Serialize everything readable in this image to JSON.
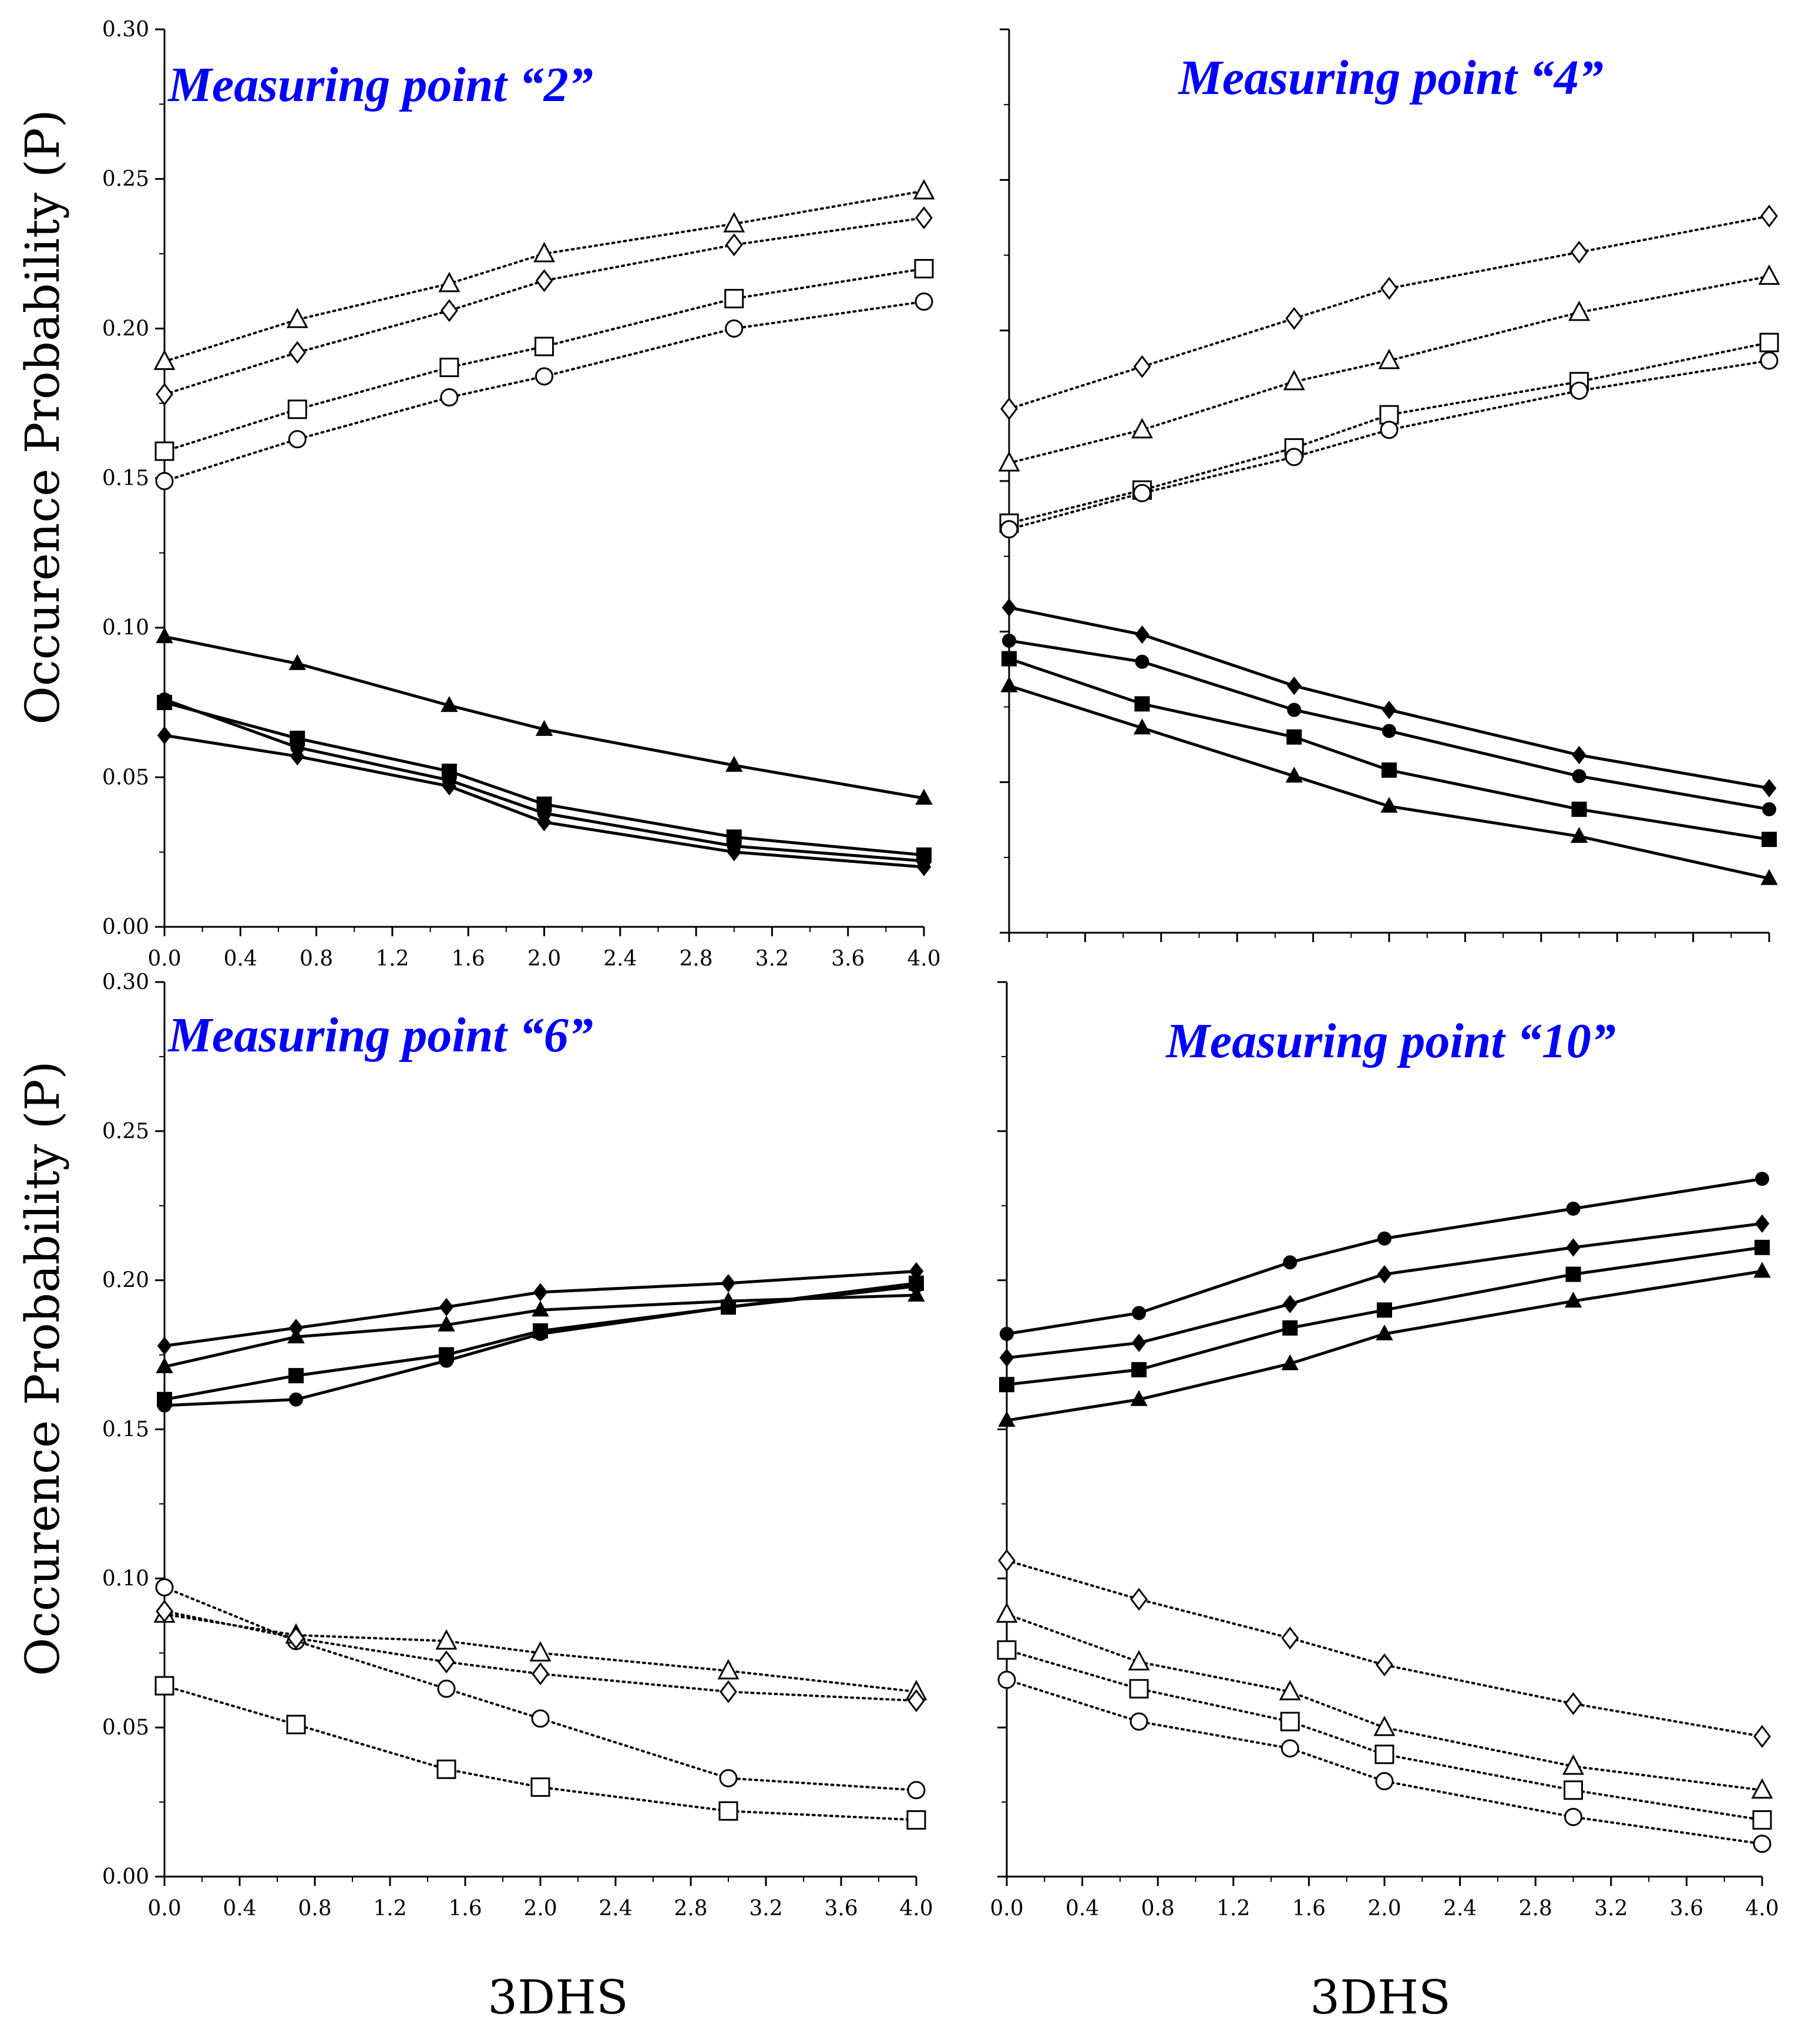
{
  "figure": {
    "y_axis_title": "Occurence Probability (P)",
    "x_axis_title": "3DHS"
  },
  "chart_data": [
    {
      "type": "line",
      "title": "Measuring point “2”",
      "xlabel": "3DHS",
      "ylabel": "Occurence Probability (P)",
      "xlim": [
        0,
        4.0
      ],
      "ylim": [
        0,
        0.3
      ],
      "x_ticks": [
        "0.0",
        "0.4",
        "0.8",
        "1.2",
        "1.6",
        "2.0",
        "2.4",
        "2.8",
        "3.2",
        "3.6",
        "4.0"
      ],
      "y_ticks": [
        "0.00",
        "0.05",
        "0.10",
        "0.15",
        "0.20",
        "0.25",
        "0.30"
      ],
      "x": [
        0,
        0.7,
        1.5,
        2.0,
        3.0,
        4.0
      ],
      "series": [
        {
          "name": "open-triangle",
          "marker": "triangle",
          "filled": false,
          "dashed": true,
          "values": [
            0.189,
            0.203,
            0.215,
            0.225,
            0.235,
            0.246
          ]
        },
        {
          "name": "open-diamond",
          "marker": "diamond",
          "filled": false,
          "dashed": true,
          "values": [
            0.178,
            0.192,
            0.206,
            0.216,
            0.228,
            0.237
          ]
        },
        {
          "name": "open-square",
          "marker": "square",
          "filled": false,
          "dashed": true,
          "values": [
            0.159,
            0.173,
            0.187,
            0.194,
            0.21,
            0.22
          ]
        },
        {
          "name": "open-circle",
          "marker": "circle",
          "filled": false,
          "dashed": true,
          "values": [
            0.149,
            0.163,
            0.177,
            0.184,
            0.2,
            0.209
          ]
        },
        {
          "name": "filled-triangle",
          "marker": "triangle",
          "filled": true,
          "dashed": false,
          "values": [
            0.097,
            0.088,
            0.074,
            0.066,
            0.054,
            0.043
          ]
        },
        {
          "name": "filled-square",
          "marker": "square",
          "filled": true,
          "dashed": false,
          "values": [
            0.075,
            0.063,
            0.052,
            0.041,
            0.03,
            0.024
          ]
        },
        {
          "name": "filled-circle",
          "marker": "circle",
          "filled": true,
          "dashed": false,
          "values": [
            0.076,
            0.06,
            0.049,
            0.038,
            0.027,
            0.022
          ]
        },
        {
          "name": "filled-diamond",
          "marker": "diamond",
          "filled": true,
          "dashed": false,
          "values": [
            0.064,
            0.057,
            0.047,
            0.035,
            0.025,
            0.02
          ]
        }
      ]
    },
    {
      "type": "line",
      "title": "Measuring point “4”",
      "xlabel": "3DHS",
      "ylabel": "",
      "xlim": [
        0,
        4.0
      ],
      "ylim": [
        0,
        0.3
      ],
      "x_ticks": [],
      "y_ticks": [],
      "x": [
        0,
        0.7,
        1.5,
        2.0,
        3.0,
        4.0
      ],
      "series": [
        {
          "name": "open-diamond",
          "marker": "diamond",
          "filled": false,
          "dashed": true,
          "values": [
            0.174,
            0.188,
            0.204,
            0.214,
            0.226,
            0.238
          ]
        },
        {
          "name": "open-triangle",
          "marker": "triangle",
          "filled": false,
          "dashed": true,
          "values": [
            0.156,
            0.167,
            0.183,
            0.19,
            0.206,
            0.218
          ]
        },
        {
          "name": "open-square",
          "marker": "square",
          "filled": false,
          "dashed": true,
          "values": [
            0.136,
            0.147,
            0.161,
            0.172,
            0.183,
            0.196
          ]
        },
        {
          "name": "open-circle",
          "marker": "circle",
          "filled": false,
          "dashed": true,
          "values": [
            0.134,
            0.146,
            0.158,
            0.167,
            0.18,
            0.19
          ]
        },
        {
          "name": "filled-diamond",
          "marker": "diamond",
          "filled": true,
          "dashed": false,
          "values": [
            0.108,
            0.099,
            0.082,
            0.074,
            0.059,
            0.048
          ]
        },
        {
          "name": "filled-circle",
          "marker": "circle",
          "filled": true,
          "dashed": false,
          "values": [
            0.097,
            0.09,
            0.074,
            0.067,
            0.052,
            0.041
          ]
        },
        {
          "name": "filled-square",
          "marker": "square",
          "filled": true,
          "dashed": false,
          "values": [
            0.091,
            0.076,
            0.065,
            0.054,
            0.041,
            0.031
          ]
        },
        {
          "name": "filled-triangle",
          "marker": "triangle",
          "filled": true,
          "dashed": false,
          "values": [
            0.082,
            0.068,
            0.052,
            0.042,
            0.032,
            0.018
          ]
        }
      ]
    },
    {
      "type": "line",
      "title": "Measuring point “6”",
      "xlabel": "3DHS",
      "ylabel": "Occurence Probability (P)",
      "xlim": [
        0,
        4.0
      ],
      "ylim": [
        0,
        0.3
      ],
      "x_ticks": [
        "0.0",
        "0.4",
        "0.8",
        "1.2",
        "1.6",
        "2.0",
        "2.4",
        "2.8",
        "3.2",
        "3.6",
        "4.0"
      ],
      "y_ticks": [
        "0.00",
        "0.05",
        "0.10",
        "0.15",
        "0.20",
        "0.25",
        "0.30"
      ],
      "x": [
        0,
        0.7,
        1.5,
        2.0,
        3.0,
        4.0
      ],
      "series": [
        {
          "name": "filled-diamond",
          "marker": "diamond",
          "filled": true,
          "dashed": false,
          "values": [
            0.178,
            0.184,
            0.191,
            0.196,
            0.199,
            0.203
          ]
        },
        {
          "name": "filled-triangle",
          "marker": "triangle",
          "filled": true,
          "dashed": false,
          "values": [
            0.171,
            0.181,
            0.185,
            0.19,
            0.193,
            0.195
          ]
        },
        {
          "name": "filled-square",
          "marker": "square",
          "filled": true,
          "dashed": false,
          "values": [
            0.16,
            0.168,
            0.175,
            0.183,
            0.191,
            0.199
          ]
        },
        {
          "name": "filled-circle",
          "marker": "circle",
          "filled": true,
          "dashed": false,
          "values": [
            0.158,
            0.16,
            0.173,
            0.182,
            0.191,
            0.198
          ]
        },
        {
          "name": "open-circle",
          "marker": "circle",
          "filled": false,
          "dashed": true,
          "values": [
            0.097,
            0.079,
            0.063,
            0.053,
            0.033,
            0.029
          ]
        },
        {
          "name": "open-triangle",
          "marker": "triangle",
          "filled": false,
          "dashed": true,
          "values": [
            0.088,
            0.081,
            0.079,
            0.075,
            0.069,
            0.062
          ]
        },
        {
          "name": "open-diamond",
          "marker": "diamond",
          "filled": false,
          "dashed": true,
          "values": [
            0.089,
            0.08,
            0.072,
            0.068,
            0.062,
            0.059
          ]
        },
        {
          "name": "open-square",
          "marker": "square",
          "filled": false,
          "dashed": true,
          "values": [
            0.064,
            0.051,
            0.036,
            0.03,
            0.022,
            0.019
          ]
        }
      ]
    },
    {
      "type": "line",
      "title": "Measuring point “10”",
      "xlabel": "3DHS",
      "ylabel": "",
      "xlim": [
        0,
        4.0
      ],
      "ylim": [
        0,
        0.3
      ],
      "x_ticks": [
        "0.0",
        "0.4",
        "0.8",
        "1.2",
        "1.6",
        "2.0",
        "2.4",
        "2.8",
        "3.2",
        "3.6",
        "4.0"
      ],
      "y_ticks": [],
      "x": [
        0,
        0.7,
        1.5,
        2.0,
        3.0,
        4.0
      ],
      "series": [
        {
          "name": "filled-circle",
          "marker": "circle",
          "filled": true,
          "dashed": false,
          "values": [
            0.182,
            0.189,
            0.206,
            0.214,
            0.224,
            0.234
          ]
        },
        {
          "name": "filled-diamond",
          "marker": "diamond",
          "filled": true,
          "dashed": false,
          "values": [
            0.174,
            0.179,
            0.192,
            0.202,
            0.211,
            0.219
          ]
        },
        {
          "name": "filled-square",
          "marker": "square",
          "filled": true,
          "dashed": false,
          "values": [
            0.165,
            0.17,
            0.184,
            0.19,
            0.202,
            0.211
          ]
        },
        {
          "name": "filled-triangle",
          "marker": "triangle",
          "filled": true,
          "dashed": false,
          "values": [
            0.153,
            0.16,
            0.172,
            0.182,
            0.193,
            0.203
          ]
        },
        {
          "name": "open-diamond",
          "marker": "diamond",
          "filled": false,
          "dashed": true,
          "values": [
            0.106,
            0.093,
            0.08,
            0.071,
            0.058,
            0.047
          ]
        },
        {
          "name": "open-triangle",
          "marker": "triangle",
          "filled": false,
          "dashed": true,
          "values": [
            0.088,
            0.072,
            0.062,
            0.05,
            0.037,
            0.029
          ]
        },
        {
          "name": "open-square",
          "marker": "square",
          "filled": false,
          "dashed": true,
          "values": [
            0.076,
            0.063,
            0.052,
            0.041,
            0.029,
            0.019
          ]
        },
        {
          "name": "open-circle",
          "marker": "circle",
          "filled": false,
          "dashed": true,
          "values": [
            0.066,
            0.052,
            0.043,
            0.032,
            0.02,
            0.011
          ]
        }
      ]
    }
  ]
}
